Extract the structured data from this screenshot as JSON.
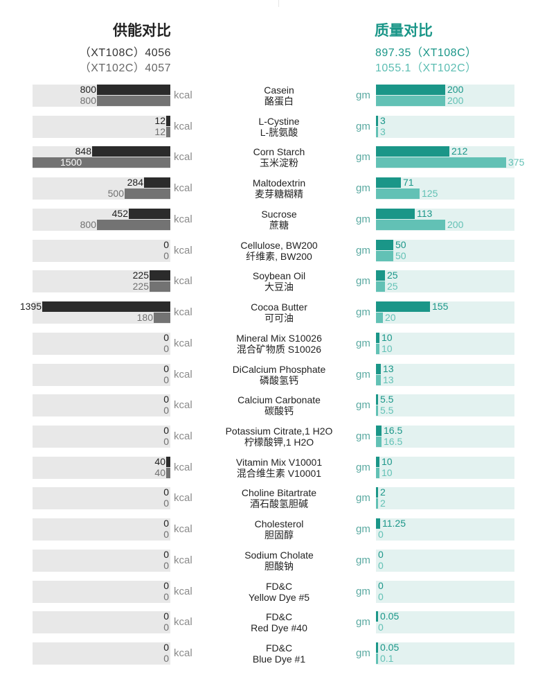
{
  "header": {
    "left_title": "供能对比",
    "left_line1": "（XT108C）4056",
    "left_line2": "（XT102C）4057",
    "right_title": "质量对比",
    "right_line1": "897.35（XT108C）",
    "right_line2": "1055.1（XT102C）"
  },
  "colors": {
    "kcal_series1": "#2b2b2b",
    "kcal_series2": "#737373",
    "gm_series1": "#1a9688",
    "gm_series2": "#62c1b5",
    "left_row_bg": "#e8e8e8",
    "right_row_bg": "#e3f2f0"
  },
  "chart_data": [
    {
      "type": "bar",
      "orientation": "horizontal",
      "direction": "right-to-left",
      "unit": "kcal",
      "categories": [
        "Casein 酪蛋白",
        "L-Cystine L-胱氨酸",
        "Corn Starch 玉米淀粉",
        "Maltodextrin 麦芽糖糊精",
        "Sucrose 蔗糖",
        "Cellulose, BW200 纤维素, BW200",
        "Soybean Oil 大豆油",
        "Cocoa Butter 可可油",
        "Mineral Mix S10026 混合矿物质 S10026",
        "DiCalcium Phosphate 磷酸氢钙",
        "Calcium Carbonate 碳酸钙",
        "Potassium Citrate,1 H2O 柠檬酸钾,1 H2O",
        "Vitamin Mix V10001 混合维生素 V10001",
        "Choline Bitartrate 酒石酸氢胆碱",
        "Cholesterol 胆固醇",
        "Sodium Cholate 胆酸钠",
        "FD&C Yellow Dye #5",
        "FD&C Red Dye #40",
        "FD&C Blue Dye #1"
      ],
      "series": [
        {
          "values": [
            800,
            12,
            848,
            284,
            452,
            0,
            225,
            1395,
            0,
            0,
            0,
            0,
            40,
            0,
            0,
            0,
            0,
            0,
            0
          ]
        },
        {
          "values": [
            800,
            12,
            1500,
            500,
            800,
            0,
            225,
            180,
            0,
            0,
            0,
            0,
            40,
            0,
            0,
            0,
            0,
            0,
            0
          ]
        }
      ],
      "xlim": [
        0,
        1500
      ]
    },
    {
      "type": "bar",
      "orientation": "horizontal",
      "direction": "left-to-right",
      "unit": "gm",
      "categories": [
        "Casein 酪蛋白",
        "L-Cystine L-胱氨酸",
        "Corn Starch 玉米淀粉",
        "Maltodextrin 麦芽糖糊精",
        "Sucrose 蔗糖",
        "Cellulose, BW200 纤维素, BW200",
        "Soybean Oil 大豆油",
        "Cocoa Butter 可可油",
        "Mineral Mix S10026 混合矿物质 S10026",
        "DiCalcium Phosphate 磷酸氢钙",
        "Calcium Carbonate 碳酸钙",
        "Potassium Citrate,1 H2O 柠檬酸钾,1 H2O",
        "Vitamin Mix V10001 混合维生素 V10001",
        "Choline Bitartrate 酒石酸氢胆碱",
        "Cholesterol 胆固醇",
        "Sodium Cholate 胆酸钠",
        "FD&C Yellow Dye #5",
        "FD&C Red Dye #40",
        "FD&C Blue Dye #1"
      ],
      "series": [
        {
          "values": [
            200,
            3,
            212,
            71,
            113,
            50,
            25,
            155,
            10,
            13,
            5.5,
            16.5,
            10,
            2,
            11.25,
            0,
            0,
            0.05,
            0.05
          ]
        },
        {
          "values": [
            200,
            3,
            375,
            125,
            200,
            50,
            25,
            20,
            10,
            13,
            5.5,
            16.5,
            10,
            2,
            0,
            0,
            0,
            0,
            0.1
          ]
        }
      ],
      "xlim": [
        0,
        400
      ]
    }
  ],
  "rows": [
    {
      "en": "Casein",
      "cn": "酪蛋白",
      "k1": 800,
      "k2": 800,
      "k1_label": "800",
      "k2_label": "800",
      "g1": 200,
      "g2": 200,
      "g1_label": "200",
      "g2_label": "200",
      "kunit": "kcal",
      "gunit": "gm",
      "g1_bar_override": 0.1,
      "g2_bar_override": 0.1
    },
    {
      "en": "L-Cystine",
      "cn": "L-胱氨酸",
      "k1": 12,
      "k2": 12,
      "k1_label": "12",
      "k2_label": "12",
      "g1": 3,
      "g2": 3,
      "g1_label": "3",
      "g2_label": "3",
      "kunit": "kcal",
      "gunit": "gm"
    },
    {
      "en": "Corn Starch",
      "cn": "玉米淀粉",
      "k1": 848,
      "k2": 1500,
      "k1_label": "848",
      "k2_label": "1500",
      "g1": 212,
      "g2": 375,
      "g1_label": "212",
      "g2_label": "375",
      "kunit": "kcal",
      "gunit": "gm"
    },
    {
      "en": "Maltodextrin",
      "cn": "麦芽糖糊精",
      "k1": 284,
      "k2": 500,
      "k1_label": "284",
      "k2_label": "500",
      "g1": 71,
      "g2": 125,
      "g1_label": "71",
      "g2_label": "125",
      "kunit": "kcal",
      "gunit": "gm"
    },
    {
      "en": "Sucrose",
      "cn": "蔗糖",
      "k1": 452,
      "k2": 800,
      "k1_label": "452",
      "k2_label": "800",
      "g1": 113,
      "g2": 200,
      "g1_label": "113",
      "g2_label": "200",
      "kunit": "kcal",
      "gunit": "gm"
    },
    {
      "en": "Cellulose, BW200",
      "cn": "纤维素, BW200",
      "k1": 0,
      "k2": 0,
      "k1_label": "0",
      "k2_label": "0",
      "g1": 50,
      "g2": 50,
      "g1_label": "50",
      "g2_label": "50",
      "kunit": "kcal",
      "gunit": "gm"
    },
    {
      "en": "Soybean Oil",
      "cn": "大豆油",
      "k1": 225,
      "k2": 225,
      "k1_label": "225",
      "k2_label": "225",
      "g1": 25,
      "g2": 25,
      "g1_label": "25",
      "g2_label": "25",
      "kunit": "kcal",
      "gunit": "gm"
    },
    {
      "en": "Cocoa Butter",
      "cn": "可可油",
      "k1": 1395,
      "k2": 180,
      "k1_label": "1395",
      "k2_label": "180",
      "g1": 155,
      "g2": 20,
      "g1_label": "155",
      "g2_label": "20",
      "kunit": "kcal",
      "gunit": "gm"
    },
    {
      "en": "Mineral Mix S10026",
      "cn": "混合矿物质 S10026",
      "k1": 0,
      "k2": 0,
      "k1_label": "0",
      "k2_label": "0",
      "g1": 10,
      "g2": 10,
      "g1_label": "10",
      "g2_label": "10",
      "kunit": "kcal",
      "gunit": "gm"
    },
    {
      "en": "DiCalcium Phosphate",
      "cn": "磷酸氢钙",
      "k1": 0,
      "k2": 0,
      "k1_label": "0",
      "k2_label": "0",
      "g1": 13,
      "g2": 13,
      "g1_label": "13",
      "g2_label": "13",
      "kunit": "kcal",
      "gunit": "gm"
    },
    {
      "en": "Calcium Carbonate",
      "cn": "碳酸钙",
      "k1": 0,
      "k2": 0,
      "k1_label": "0",
      "k2_label": "0",
      "g1": 5.5,
      "g2": 5.5,
      "g1_label": "5.5",
      "g2_label": "5.5",
      "kunit": "kcal",
      "gunit": "gm"
    },
    {
      "en": "Potassium Citrate,1 H2O",
      "cn": "柠檬酸钾,1 H2O",
      "k1": 0,
      "k2": 0,
      "k1_label": "0",
      "k2_label": "0",
      "g1": 16.5,
      "g2": 16.5,
      "g1_label": "16.5",
      "g2_label": "16.5",
      "kunit": "kcal",
      "gunit": "gm"
    },
    {
      "en": "Vitamin Mix V10001",
      "cn": "混合维生素 V10001",
      "k1": 40,
      "k2": 40,
      "k1_label": "40",
      "k2_label": "40",
      "g1": 10,
      "g2": 10,
      "g1_label": "10",
      "g2_label": "10",
      "kunit": "kcal",
      "gunit": "gm"
    },
    {
      "en": "Choline Bitartrate",
      "cn": "酒石酸氢胆碱",
      "k1": 0,
      "k2": 0,
      "k1_label": "0",
      "k2_label": "0",
      "g1": 2,
      "g2": 2,
      "g1_label": "2",
      "g2_label": "2",
      "kunit": "kcal",
      "gunit": "gm"
    },
    {
      "en": "Cholesterol",
      "cn": "胆固醇",
      "k1": 0,
      "k2": 0,
      "k1_label": "0",
      "k2_label": "0",
      "g1": 11.25,
      "g2": 0,
      "g1_label": "11.25",
      "g2_label": "0",
      "kunit": "kcal",
      "gunit": "gm"
    },
    {
      "en": "Sodium Cholate",
      "cn": "胆酸钠",
      "k1": 0,
      "k2": 0,
      "k1_label": "0",
      "k2_label": "0",
      "g1": 0,
      "g2": 0,
      "g1_label": "0",
      "g2_label": "0",
      "kunit": "kcal",
      "gunit": "gm"
    },
    {
      "en": "FD&C",
      "cn": "Yellow Dye #5",
      "k1": 0,
      "k2": 0,
      "k1_label": "0",
      "k2_label": "0",
      "g1": 0,
      "g2": 0,
      "g1_label": "0",
      "g2_label": "0",
      "kunit": "kcal",
      "gunit": "gm"
    },
    {
      "en": "FD&C",
      "cn": "Red Dye #40",
      "k1": 0,
      "k2": 0,
      "k1_label": "0",
      "k2_label": "0",
      "g1": 0.05,
      "g2": 0,
      "g1_label": "0.05",
      "g2_label": "0",
      "kunit": "kcal",
      "gunit": "gm"
    },
    {
      "en": "FD&C",
      "cn": "Blue Dye #1",
      "k1": 0,
      "k2": 0,
      "k1_label": "0",
      "k2_label": "0",
      "g1": 0.05,
      "g2": 0.1,
      "g1_label": "0.05",
      "g2_label": "0.1",
      "kunit": "kcal",
      "gunit": "gm"
    }
  ]
}
